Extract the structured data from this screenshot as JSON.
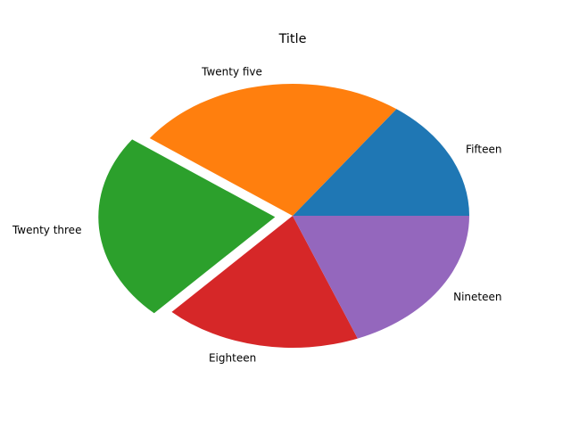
{
  "chart_data": {
    "type": "pie",
    "title": "Title",
    "slices": [
      {
        "label": "Fifteen",
        "value": 15,
        "color": "#1f77b4",
        "explode": 0
      },
      {
        "label": "Twenty five",
        "value": 25,
        "color": "#ff7f0e",
        "explode": 0
      },
      {
        "label": "Twenty three",
        "value": 23,
        "color": "#2ca02c",
        "explode": 0.1
      },
      {
        "label": "Eighteen",
        "value": 18,
        "color": "#d62728",
        "explode": 0
      },
      {
        "label": "Nineteen",
        "value": 19,
        "color": "#9467bd",
        "explode": 0
      }
    ],
    "start_angle_deg": 0,
    "direction": "counterclockwise"
  }
}
